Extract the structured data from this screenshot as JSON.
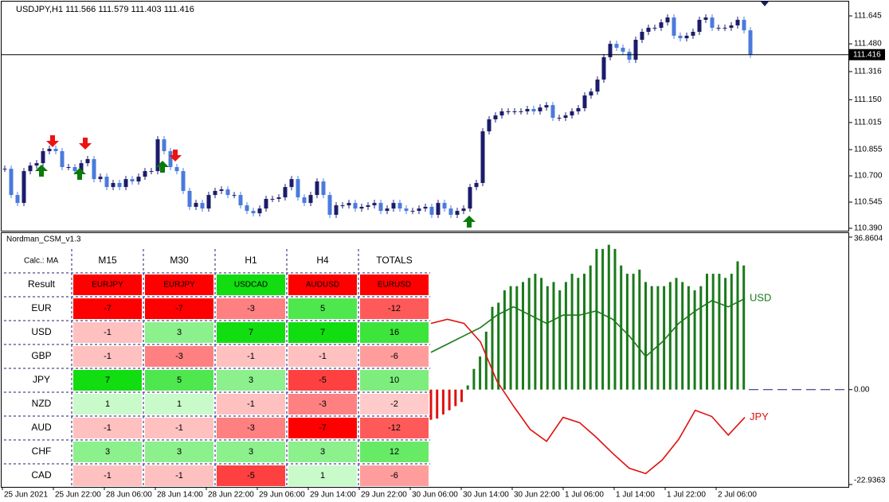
{
  "symbol_header": "USDJPY,H1  111.566 111.579 111.403 111.416",
  "price_chart": {
    "type": "candlestick",
    "closes": [
      110.742,
      110.587,
      110.54,
      110.728,
      110.761,
      110.775,
      110.846,
      110.86,
      110.846,
      110.752,
      110.752,
      110.728,
      110.775,
      110.799,
      110.681,
      110.695,
      110.634,
      110.658,
      110.634,
      110.681,
      110.667,
      110.695,
      110.728,
      110.728,
      110.916,
      110.846,
      110.752,
      110.728,
      110.611,
      110.517,
      110.54,
      110.507,
      110.587,
      110.611,
      110.62,
      110.587,
      110.587,
      110.526,
      110.493,
      110.479,
      110.507,
      110.564,
      110.564,
      110.573,
      110.634,
      110.681,
      110.573,
      110.54,
      110.587,
      110.667,
      110.587,
      110.47,
      110.526,
      110.526,
      110.54,
      110.507,
      110.517,
      110.526,
      110.54,
      110.493,
      110.507,
      110.54,
      110.507,
      110.493,
      110.493,
      110.507,
      110.517,
      110.47,
      110.54,
      110.507,
      110.47,
      110.493,
      110.507,
      110.634,
      110.658,
      110.963,
      111.034,
      111.057,
      111.081,
      111.081,
      111.081,
      111.081,
      111.095,
      111.081,
      111.104,
      111.118,
      111.043,
      111.043,
      111.057,
      111.081,
      111.1,
      111.175,
      111.198,
      111.269,
      111.401,
      111.48,
      111.457,
      111.433,
      111.386,
      111.504,
      111.551,
      111.575,
      111.575,
      111.607,
      111.636,
      111.528,
      111.513,
      111.528,
      111.551,
      111.622,
      111.636,
      111.575,
      111.575,
      111.575,
      111.589,
      111.622,
      111.56,
      111.416
    ],
    "ylim": [
      110.39,
      111.645
    ],
    "yticks": [
      {
        "value": 110.39,
        "label": "110.390"
      },
      {
        "value": 110.545,
        "label": "110.545"
      },
      {
        "value": 110.7,
        "label": "110.700"
      },
      {
        "value": 110.855,
        "label": "110.855"
      },
      {
        "value": 111.015,
        "label": "111.015"
      },
      {
        "value": 111.15,
        "label": "111.150"
      },
      {
        "value": 111.316,
        "label": "111.316"
      },
      {
        "value": 111.48,
        "label": "111.480"
      },
      {
        "value": 111.645,
        "label": "111.645"
      }
    ],
    "bid": 111.416,
    "up_color": "#1c1c6b",
    "down_color": "#4a7bdc"
  },
  "indicator": {
    "type": "bar",
    "title": "Nordman_CSM_v1.3",
    "values": [
      -7.3,
      -7,
      -6,
      -5,
      -4,
      -3,
      1,
      5,
      8,
      14,
      20,
      21,
      24,
      25,
      25,
      26,
      27,
      28,
      27,
      25,
      26,
      24,
      26,
      28,
      27,
      28,
      30,
      34,
      34,
      35,
      34,
      30,
      28,
      28,
      29,
      26,
      25,
      25,
      25,
      26,
      27,
      26,
      25,
      24,
      25,
      28,
      28,
      28,
      27,
      28,
      31,
      30
    ],
    "pos_color": "#1a7a1a",
    "neg_color": "#e01010",
    "ylim": [
      -22.9363,
      36.8604
    ],
    "yticks": [
      36.8604,
      {
        "value": 0,
        "label": "0.00"
      },
      -22.9363
    ],
    "series": [
      {
        "name": "USD",
        "color": "#1a7a1a",
        "values": [
          9,
          11,
          13,
          15,
          18,
          20,
          18,
          16,
          18,
          18,
          19,
          17,
          13,
          8,
          11.5,
          16,
          19,
          21.5,
          20,
          22
        ]
      },
      {
        "name": "JPY",
        "color": "#e01010",
        "values": [
          16,
          17,
          16,
          11.5,
          2,
          -4,
          -9.6,
          -12.5,
          -6.7,
          -8,
          -11.5,
          -15.4,
          -19,
          -20.3,
          -17,
          -12,
          -5,
          -6.5,
          -11,
          -6.7
        ]
      }
    ]
  },
  "table": {
    "calc_label": "Calc.: MA",
    "columns": [
      "M15",
      "M30",
      "H1",
      "H4",
      "TOTALS"
    ],
    "result_label": "Result",
    "results": [
      {
        "text": "EURJPY",
        "color": "#ff0000"
      },
      {
        "text": "EURJPY",
        "color": "#ff0000"
      },
      {
        "text": "USDCAD",
        "color": "#11dd11"
      },
      {
        "text": "AUDUSD",
        "color": "#ff0000"
      },
      {
        "text": "EURUSD",
        "color": "#ff0000"
      }
    ],
    "rows": [
      {
        "label": "EUR",
        "values": [
          -7,
          -7,
          -3,
          5,
          -12
        ]
      },
      {
        "label": "USD",
        "values": [
          -1,
          3,
          7,
          7,
          16
        ]
      },
      {
        "label": "GBP",
        "values": [
          -1,
          -3,
          -1,
          -1,
          -6
        ]
      },
      {
        "label": "JPY",
        "values": [
          7,
          5,
          3,
          -5,
          10
        ]
      },
      {
        "label": "NZD",
        "values": [
          1,
          1,
          -1,
          -3,
          -2
        ]
      },
      {
        "label": "AUD",
        "values": [
          -1,
          -1,
          -3,
          -7,
          -12
        ]
      },
      {
        "label": "CHF",
        "values": [
          3,
          3,
          3,
          3,
          12
        ]
      },
      {
        "label": "CAD",
        "values": [
          -1,
          -1,
          -5,
          1,
          -6
        ]
      }
    ]
  },
  "time_axis": [
    "25 Jun 2021",
    "25 Jun 22:00",
    "28 Jun 06:00",
    "28 Jun 14:00",
    "28 Jun 22:00",
    "29 Jun 06:00",
    "29 Jun 14:00",
    "29 Jun 22:00",
    "30 Jun 06:00",
    "30 Jun 14:00",
    "30 Jun 22:00",
    "1 Jul 06:00",
    "1 Jul 14:00",
    "1 Jul 22:00",
    "2 Jul 06:00"
  ]
}
